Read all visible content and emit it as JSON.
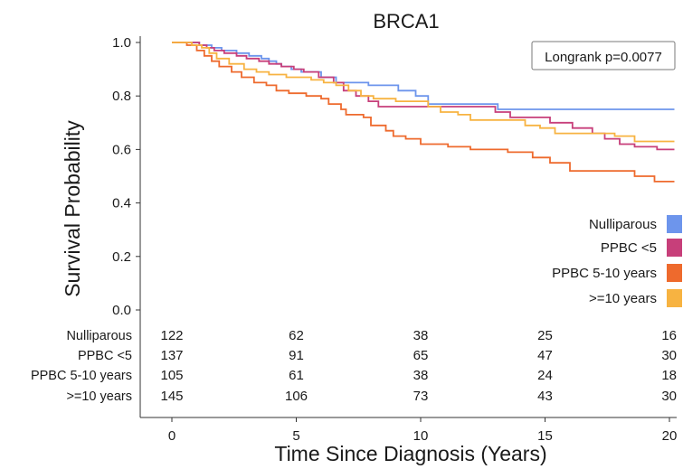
{
  "chart_data": {
    "type": "line",
    "subtype": "kaplan-meier survival",
    "title": "BRCA1",
    "xlabel": "Time Since Diagnosis (Years)",
    "ylabel": "Survival Probability",
    "xlim": [
      0,
      20
    ],
    "ylim": [
      0,
      1
    ],
    "xticks": [
      0,
      5,
      10,
      15,
      20
    ],
    "yticks": [
      "0.0",
      "0.2",
      "0.4",
      "0.6",
      "0.8",
      "1.0"
    ],
    "xtick_labels": [
      "0",
      "5",
      "10",
      "15",
      "20"
    ],
    "grid": false,
    "annotation": "Longrank p=0.0077",
    "legend_position": "right",
    "series": [
      {
        "name": "Nulliparous",
        "color": "#6d95ec",
        "steps": [
          [
            0,
            1.0
          ],
          [
            1.1,
            0.99
          ],
          [
            1.6,
            0.98
          ],
          [
            2.0,
            0.97
          ],
          [
            2.6,
            0.96
          ],
          [
            3.1,
            0.95
          ],
          [
            3.6,
            0.94
          ],
          [
            3.9,
            0.93
          ],
          [
            4.2,
            0.92
          ],
          [
            4.4,
            0.91
          ],
          [
            4.8,
            0.9
          ],
          [
            5.2,
            0.89
          ],
          [
            6.0,
            0.87
          ],
          [
            6.6,
            0.85
          ],
          [
            7.9,
            0.84
          ],
          [
            9.1,
            0.82
          ],
          [
            9.8,
            0.8
          ],
          [
            10.3,
            0.77
          ],
          [
            13.1,
            0.75
          ],
          [
            20.2,
            0.75
          ]
        ]
      },
      {
        "name": "PPBC <5",
        "color": "#c73f7a",
        "steps": [
          [
            0,
            1.0
          ],
          [
            1.1,
            0.99
          ],
          [
            1.4,
            0.98
          ],
          [
            1.7,
            0.97
          ],
          [
            2.1,
            0.96
          ],
          [
            2.6,
            0.95
          ],
          [
            3.0,
            0.94
          ],
          [
            3.5,
            0.93
          ],
          [
            3.9,
            0.92
          ],
          [
            4.4,
            0.91
          ],
          [
            4.9,
            0.9
          ],
          [
            5.3,
            0.89
          ],
          [
            5.9,
            0.87
          ],
          [
            6.5,
            0.85
          ],
          [
            6.9,
            0.82
          ],
          [
            7.4,
            0.8
          ],
          [
            7.9,
            0.78
          ],
          [
            8.3,
            0.76
          ],
          [
            13.0,
            0.74
          ],
          [
            13.6,
            0.72
          ],
          [
            15.2,
            0.7
          ],
          [
            16.1,
            0.68
          ],
          [
            16.9,
            0.66
          ],
          [
            17.4,
            0.64
          ],
          [
            18.0,
            0.62
          ],
          [
            18.6,
            0.61
          ],
          [
            19.5,
            0.6
          ],
          [
            20.2,
            0.6
          ]
        ]
      },
      {
        "name": "PPBC 5-10 years",
        "color": "#ee6a2d",
        "steps": [
          [
            0,
            1.0
          ],
          [
            0.6,
            0.99
          ],
          [
            1.0,
            0.97
          ],
          [
            1.3,
            0.95
          ],
          [
            1.6,
            0.93
          ],
          [
            1.9,
            0.91
          ],
          [
            2.4,
            0.89
          ],
          [
            2.8,
            0.87
          ],
          [
            3.3,
            0.85
          ],
          [
            3.8,
            0.84
          ],
          [
            4.2,
            0.82
          ],
          [
            4.7,
            0.81
          ],
          [
            5.4,
            0.8
          ],
          [
            6.0,
            0.79
          ],
          [
            6.3,
            0.77
          ],
          [
            6.8,
            0.75
          ],
          [
            7.0,
            0.73
          ],
          [
            7.7,
            0.72
          ],
          [
            8.0,
            0.69
          ],
          [
            8.6,
            0.67
          ],
          [
            8.9,
            0.65
          ],
          [
            9.4,
            0.64
          ],
          [
            10.0,
            0.62
          ],
          [
            11.1,
            0.61
          ],
          [
            12.0,
            0.6
          ],
          [
            13.5,
            0.59
          ],
          [
            14.5,
            0.57
          ],
          [
            15.2,
            0.55
          ],
          [
            16.0,
            0.52
          ],
          [
            18.6,
            0.5
          ],
          [
            19.4,
            0.48
          ],
          [
            20.2,
            0.48
          ]
        ]
      },
      {
        "name": ">=10 years",
        "color": "#f7b341",
        "steps": [
          [
            0,
            1.0
          ],
          [
            0.8,
            0.99
          ],
          [
            1.2,
            0.98
          ],
          [
            1.5,
            0.96
          ],
          [
            1.8,
            0.94
          ],
          [
            2.3,
            0.92
          ],
          [
            2.9,
            0.9
          ],
          [
            3.4,
            0.89
          ],
          [
            3.9,
            0.88
          ],
          [
            4.6,
            0.87
          ],
          [
            5.6,
            0.86
          ],
          [
            6.1,
            0.85
          ],
          [
            6.6,
            0.84
          ],
          [
            7.1,
            0.82
          ],
          [
            7.6,
            0.8
          ],
          [
            8.1,
            0.79
          ],
          [
            9.0,
            0.78
          ],
          [
            10.3,
            0.76
          ],
          [
            10.8,
            0.74
          ],
          [
            11.5,
            0.73
          ],
          [
            12.0,
            0.71
          ],
          [
            13.2,
            0.71
          ],
          [
            14.2,
            0.69
          ],
          [
            14.8,
            0.68
          ],
          [
            15.4,
            0.66
          ],
          [
            16.1,
            0.66
          ],
          [
            17.8,
            0.65
          ],
          [
            18.6,
            0.63
          ],
          [
            20.2,
            0.63
          ]
        ]
      }
    ],
    "risk_table": {
      "times": [
        0,
        5,
        10,
        15,
        20
      ],
      "rows": [
        {
          "label": "Nulliparous",
          "counts": [
            "122",
            "62",
            "38",
            "25",
            "16"
          ]
        },
        {
          "label": "PPBC <5",
          "counts": [
            "137",
            "91",
            "65",
            "47",
            "30"
          ]
        },
        {
          "label": "PPBC 5-10 years",
          "counts": [
            "105",
            "61",
            "38",
            "24",
            "18"
          ]
        },
        {
          "label": ">=10 years",
          "counts": [
            "145",
            "106",
            "73",
            "43",
            "30"
          ]
        }
      ]
    }
  }
}
